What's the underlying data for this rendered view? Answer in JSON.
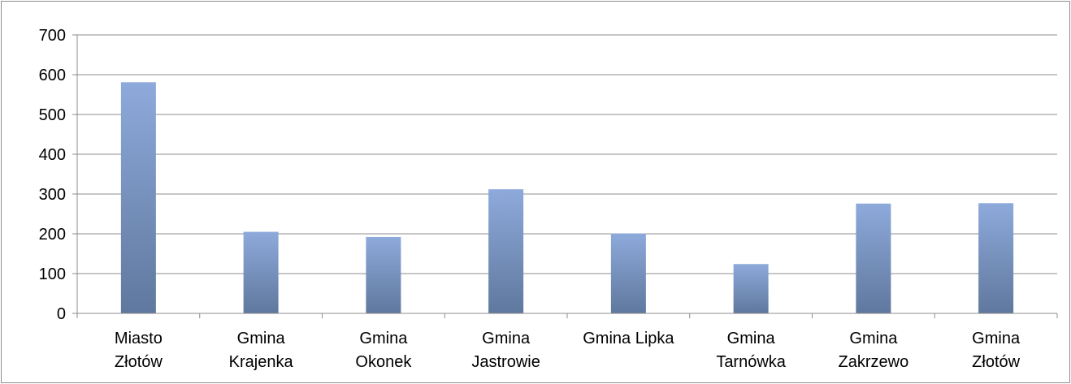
{
  "chart_data": {
    "type": "bar",
    "categories": [
      [
        "Miasto",
        "Złotów"
      ],
      [
        "Gmina",
        "Krajenka"
      ],
      [
        "Gmina",
        "Okonek"
      ],
      [
        "Gmina",
        "Jastrowie"
      ],
      [
        "Gmina Lipka"
      ],
      [
        "Gmina",
        "Tarnówka"
      ],
      [
        "Gmina",
        "Zakrzewo"
      ],
      [
        "Gmina",
        "Złotów"
      ]
    ],
    "values": [
      581,
      205,
      192,
      312,
      201,
      124,
      276,
      277
    ],
    "ylim": [
      0,
      700
    ],
    "yticks": [
      0,
      100,
      200,
      300,
      400,
      500,
      600,
      700
    ],
    "ytick_labels": [
      "0",
      "100",
      "200",
      "300",
      "400",
      "500",
      "600",
      "700"
    ],
    "grid": true,
    "legend": "none",
    "title": "",
    "xlabel": "",
    "ylabel": "",
    "colors": {
      "bar_top": "#8eaadb",
      "bar_bottom": "#5f789e",
      "grid": "#8c8c8c",
      "axis": "#8c8c8c"
    }
  }
}
